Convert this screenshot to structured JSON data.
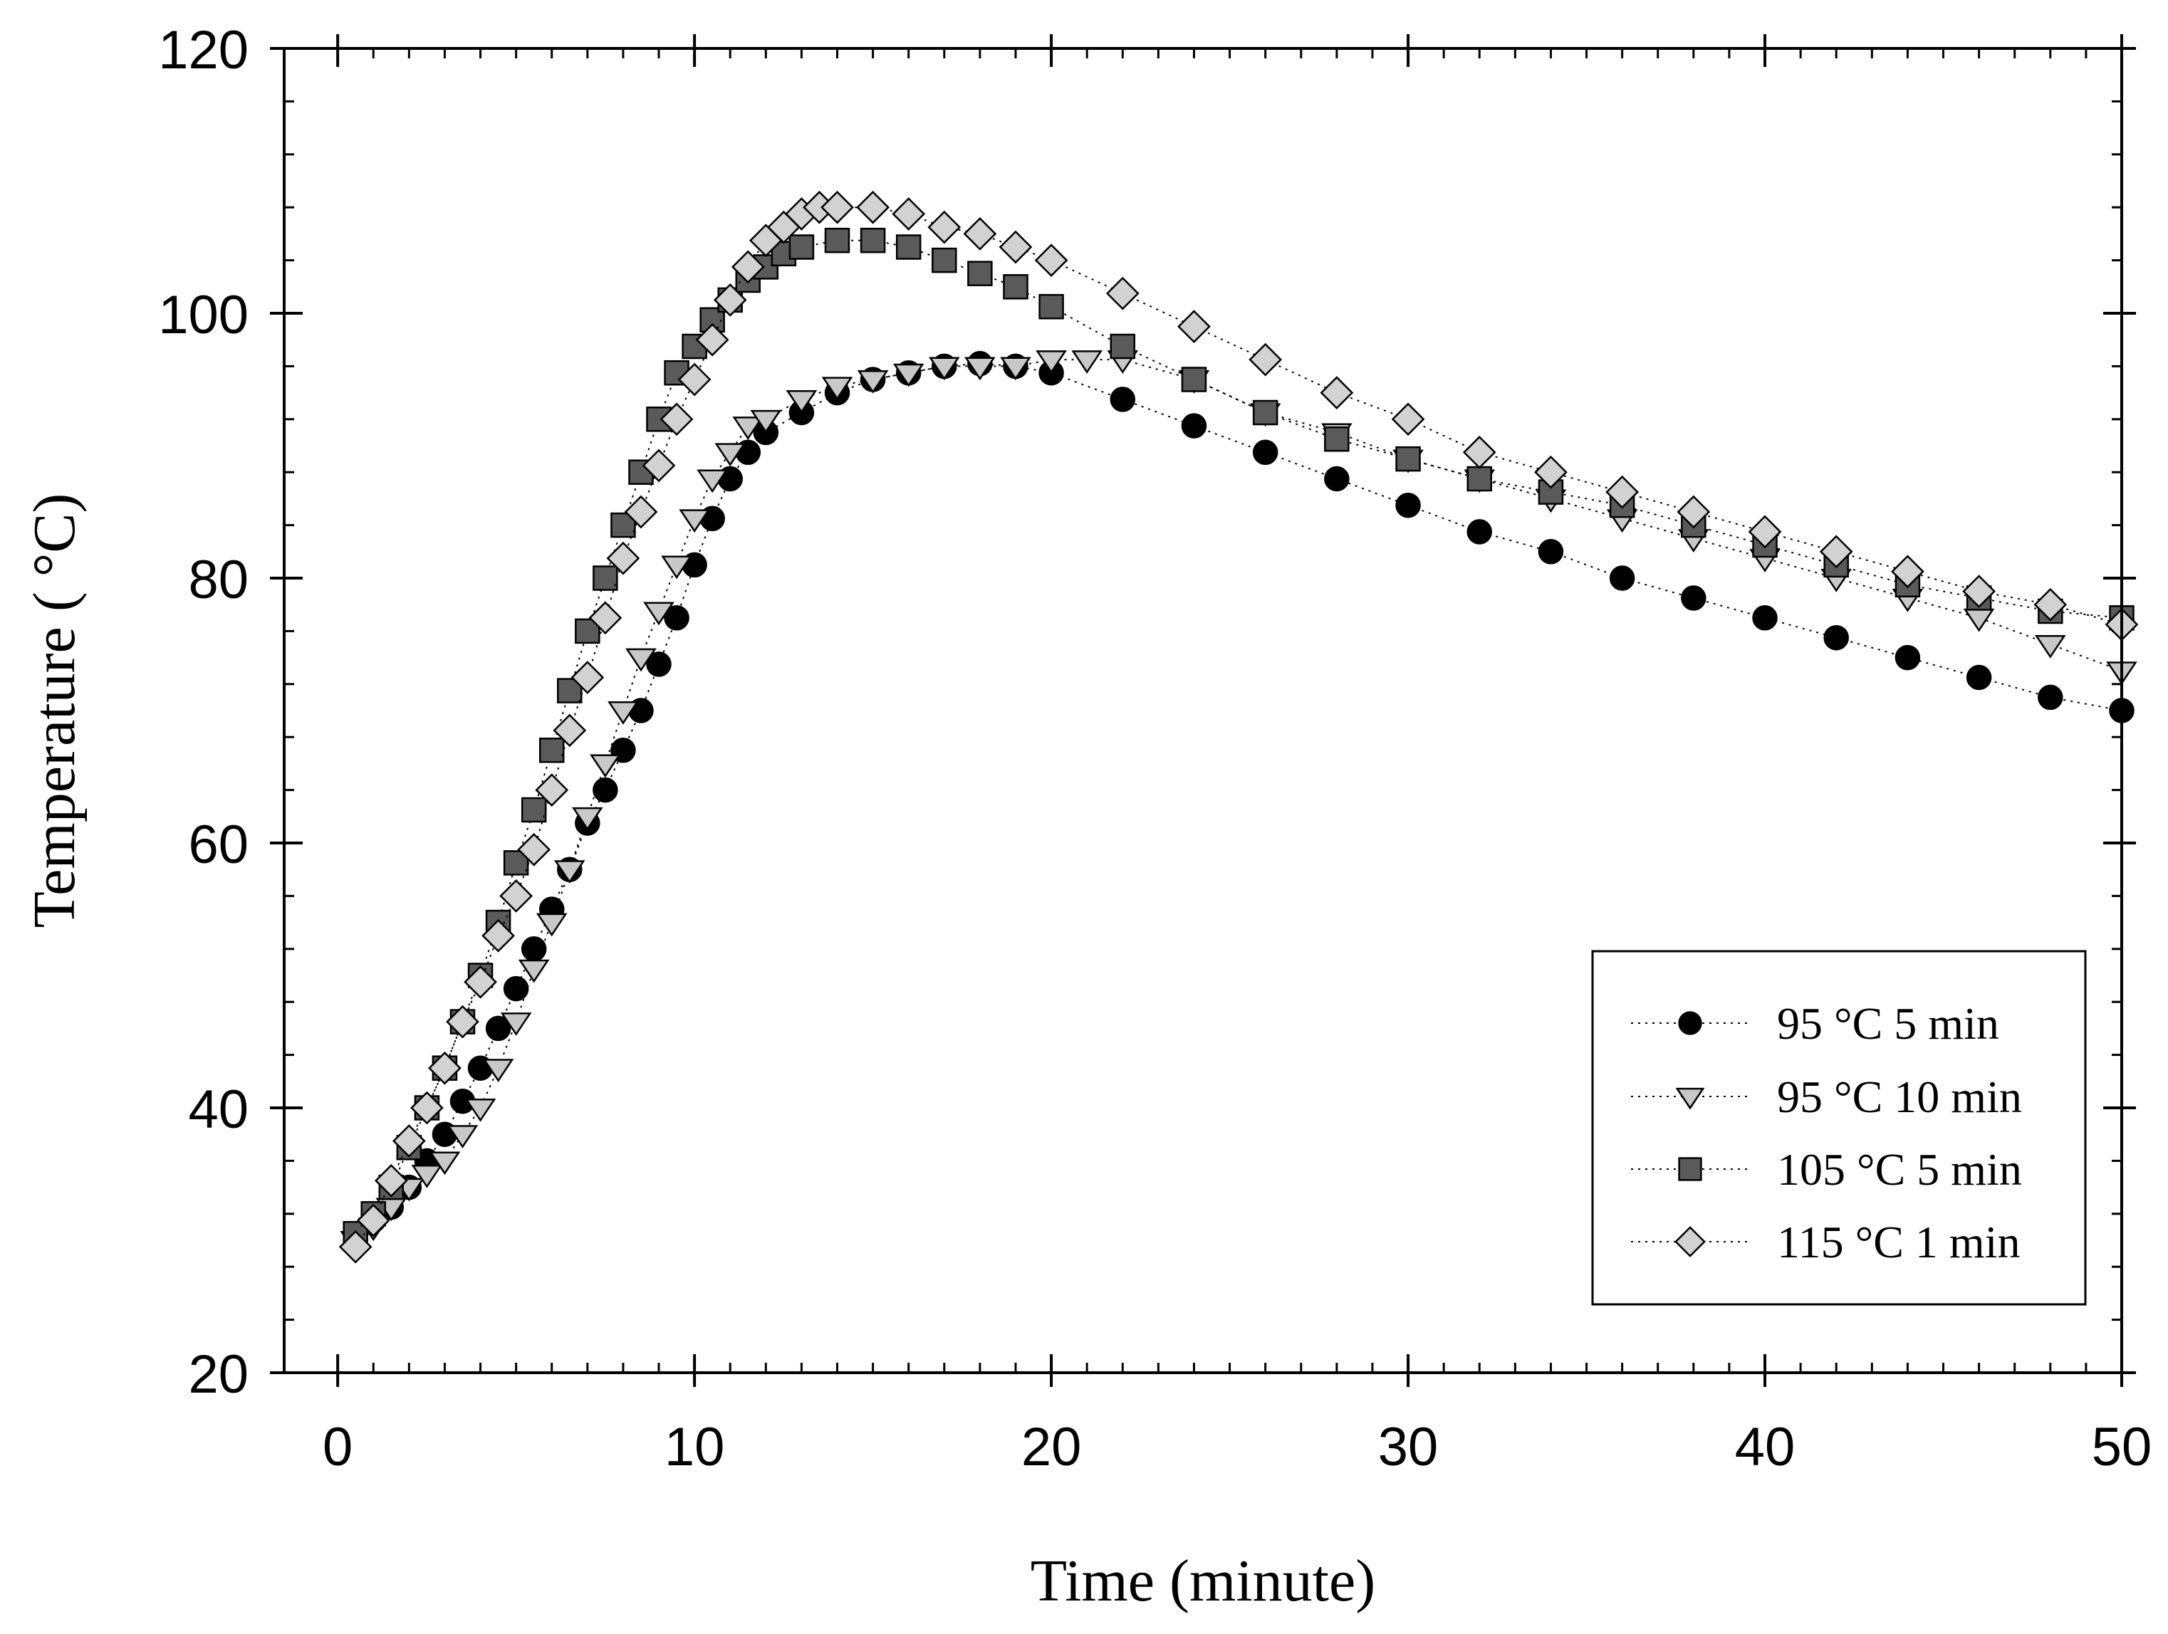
{
  "chart_data": {
    "type": "scatter",
    "title": "",
    "xlabel": "Time (minute)",
    "ylabel": "Temperature ( °C)",
    "xlim": [
      -1.5,
      50
    ],
    "ylim": [
      20,
      120
    ],
    "xticks": [
      0,
      10,
      20,
      30,
      40,
      50
    ],
    "yticks": [
      20,
      40,
      60,
      80,
      100,
      120
    ],
    "grid": false,
    "legend_position": "bottom-right",
    "series": [
      {
        "name": "95 °C 5 min",
        "marker": "circle",
        "color": "#000000",
        "x": [
          0.5,
          1,
          1.5,
          2,
          2.5,
          3,
          3.5,
          4,
          4.5,
          5,
          5.5,
          6,
          6.5,
          7,
          7.5,
          8,
          8.5,
          9,
          9.5,
          10,
          10.5,
          11,
          11.5,
          12,
          13,
          14,
          15,
          16,
          17,
          18,
          19,
          20,
          22,
          24,
          26,
          28,
          30,
          32,
          34,
          36,
          38,
          40,
          42,
          44,
          46,
          48,
          50
        ],
        "y": [
          30,
          31.5,
          32.5,
          34,
          36,
          38,
          40.5,
          43,
          46,
          49,
          52,
          55,
          58,
          61.5,
          64,
          67,
          70,
          73.5,
          77,
          81,
          84.5,
          87.5,
          89.5,
          91,
          92.5,
          94,
          95,
          95.5,
          96,
          96.2,
          96,
          95.5,
          93.5,
          91.5,
          89.5,
          87.5,
          85.5,
          83.5,
          82,
          80,
          78.5,
          77,
          75.5,
          74,
          72.5,
          71,
          70
        ]
      },
      {
        "name": "95 °C 10 min",
        "marker": "triangle-down",
        "color": "#c8c8c8",
        "x": [
          0.5,
          1,
          1.5,
          2,
          2.5,
          3,
          3.5,
          4,
          4.5,
          5,
          5.5,
          6,
          6.5,
          7,
          7.5,
          8,
          8.5,
          9,
          9.5,
          10,
          10.5,
          11,
          11.5,
          12,
          13,
          14,
          15,
          16,
          17,
          18,
          19,
          20,
          21,
          22,
          24,
          26,
          28,
          30,
          32,
          34,
          36,
          38,
          40,
          42,
          44,
          46,
          48,
          50
        ],
        "y": [
          30,
          31,
          32.5,
          34,
          35,
          36,
          38,
          40,
          43,
          46.5,
          50.5,
          54,
          58,
          62,
          66,
          70,
          74,
          77.5,
          81,
          84.5,
          87.5,
          89.5,
          91.5,
          92,
          93.5,
          94.5,
          95,
          95.5,
          96,
          96,
          96,
          96.5,
          96.5,
          96.5,
          95,
          92.5,
          91,
          89,
          87.5,
          86,
          84.5,
          83,
          81.5,
          80,
          78.5,
          77,
          75,
          73
        ]
      },
      {
        "name": "105 °C 5 min",
        "marker": "square",
        "color": "#5a5a5a",
        "x": [
          0.5,
          1,
          1.5,
          2,
          2.5,
          3,
          3.5,
          4,
          4.5,
          5,
          5.5,
          6,
          6.5,
          7,
          7.5,
          8,
          8.5,
          9,
          9.5,
          10,
          10.5,
          11,
          11.5,
          12,
          12.5,
          13,
          14,
          15,
          16,
          17,
          18,
          19,
          20,
          22,
          24,
          26,
          28,
          30,
          32,
          34,
          36,
          38,
          40,
          42,
          44,
          46,
          48,
          50
        ],
        "y": [
          30.5,
          32,
          34,
          37,
          40,
          43,
          46.5,
          50,
          54,
          58.5,
          62.5,
          67,
          71.5,
          76,
          80,
          84,
          88,
          92,
          95.5,
          97.5,
          99.5,
          101,
          102.5,
          103.5,
          104.5,
          105,
          105.5,
          105.5,
          105,
          104,
          103,
          102,
          100.5,
          97.5,
          95,
          92.5,
          90.5,
          89,
          87.5,
          86.5,
          85.5,
          84,
          82.5,
          81,
          79.5,
          78.5,
          77.5,
          77
        ]
      },
      {
        "name": "115 °C 1 min",
        "marker": "diamond",
        "color": "#d2d2d2",
        "x": [
          0.5,
          1,
          1.5,
          2,
          2.5,
          3,
          3.5,
          4,
          4.5,
          5,
          5.5,
          6,
          6.5,
          7,
          7.5,
          8,
          8.5,
          9,
          9.5,
          10,
          10.5,
          11,
          11.5,
          12,
          12.5,
          13,
          13.5,
          14,
          15,
          16,
          17,
          18,
          19,
          20,
          22,
          24,
          26,
          28,
          30,
          32,
          34,
          36,
          38,
          40,
          42,
          44,
          46,
          48,
          50
        ],
        "y": [
          29.5,
          31.5,
          34.5,
          37.5,
          40,
          43,
          46.5,
          49.5,
          53,
          56,
          59.5,
          64,
          68.5,
          72.5,
          77,
          81.5,
          85,
          88.5,
          92,
          95,
          98,
          101,
          103.5,
          105.5,
          106.5,
          107.5,
          108,
          108,
          108,
          107.5,
          106.5,
          106,
          105,
          104,
          101.5,
          99,
          96.5,
          94,
          92,
          89.5,
          88,
          86.5,
          85,
          83.5,
          82,
          80.5,
          79,
          78,
          76.5
        ]
      }
    ]
  }
}
